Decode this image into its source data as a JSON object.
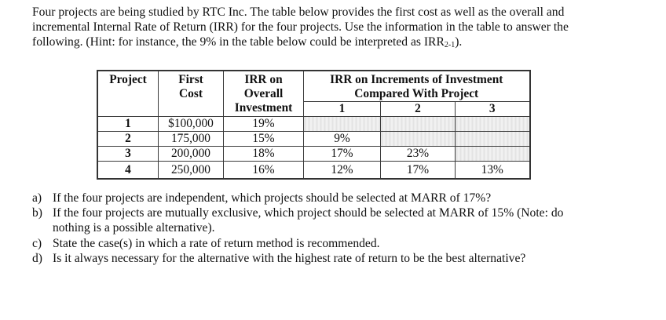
{
  "intro": {
    "line1": "Four projects are being studied by RTC Inc. The table below provides the first cost as well as the overall and",
    "line2": "incremental Internal Rate of Return (IRR) for the four projects. Use the information in the table to answer the",
    "line3_pre": "following. (Hint: for instance, the 9% in the table below could be interpreted as IRR",
    "line3_sub": "2-1",
    "line3_post": ")."
  },
  "table": {
    "headers": {
      "project": "Project",
      "first_cost_1": "First",
      "first_cost_2": "Cost",
      "irr_overall_1": "IRR on",
      "irr_overall_2": "Overall",
      "irr_overall_3": "Investment",
      "incremental_1": "IRR on Increments of Investment",
      "incremental_2": "Compared With Project",
      "compared_with": [
        "1",
        "2",
        "3"
      ]
    },
    "rows": [
      {
        "project": "1",
        "first_cost": "$100,000",
        "irr_overall": "19%",
        "inc": [
          "",
          "",
          ""
        ]
      },
      {
        "project": "2",
        "first_cost": "175,000",
        "irr_overall": "15%",
        "inc": [
          "9%",
          "",
          ""
        ]
      },
      {
        "project": "3",
        "first_cost": "200,000",
        "irr_overall": "18%",
        "inc": [
          "17%",
          "23%",
          ""
        ]
      },
      {
        "project": "4",
        "first_cost": "250,000",
        "irr_overall": "16%",
        "inc": [
          "12%",
          "17%",
          "13%"
        ]
      }
    ]
  },
  "questions": [
    {
      "label": "a)",
      "text": "If the four projects are independent, which projects should be selected at MARR of 17%?"
    },
    {
      "label": "b)",
      "text": "If the four projects are mutually exclusive, which project should be selected at MARR of 15% (Note: do",
      "text2": "nothing is a possible alternative)."
    },
    {
      "label": "c)",
      "text": "State the case(s) in which a rate of return method is recommended."
    },
    {
      "label": "d)",
      "text": "Is it always necessary for the alternative with the highest rate of return to be the best alternative?"
    }
  ]
}
